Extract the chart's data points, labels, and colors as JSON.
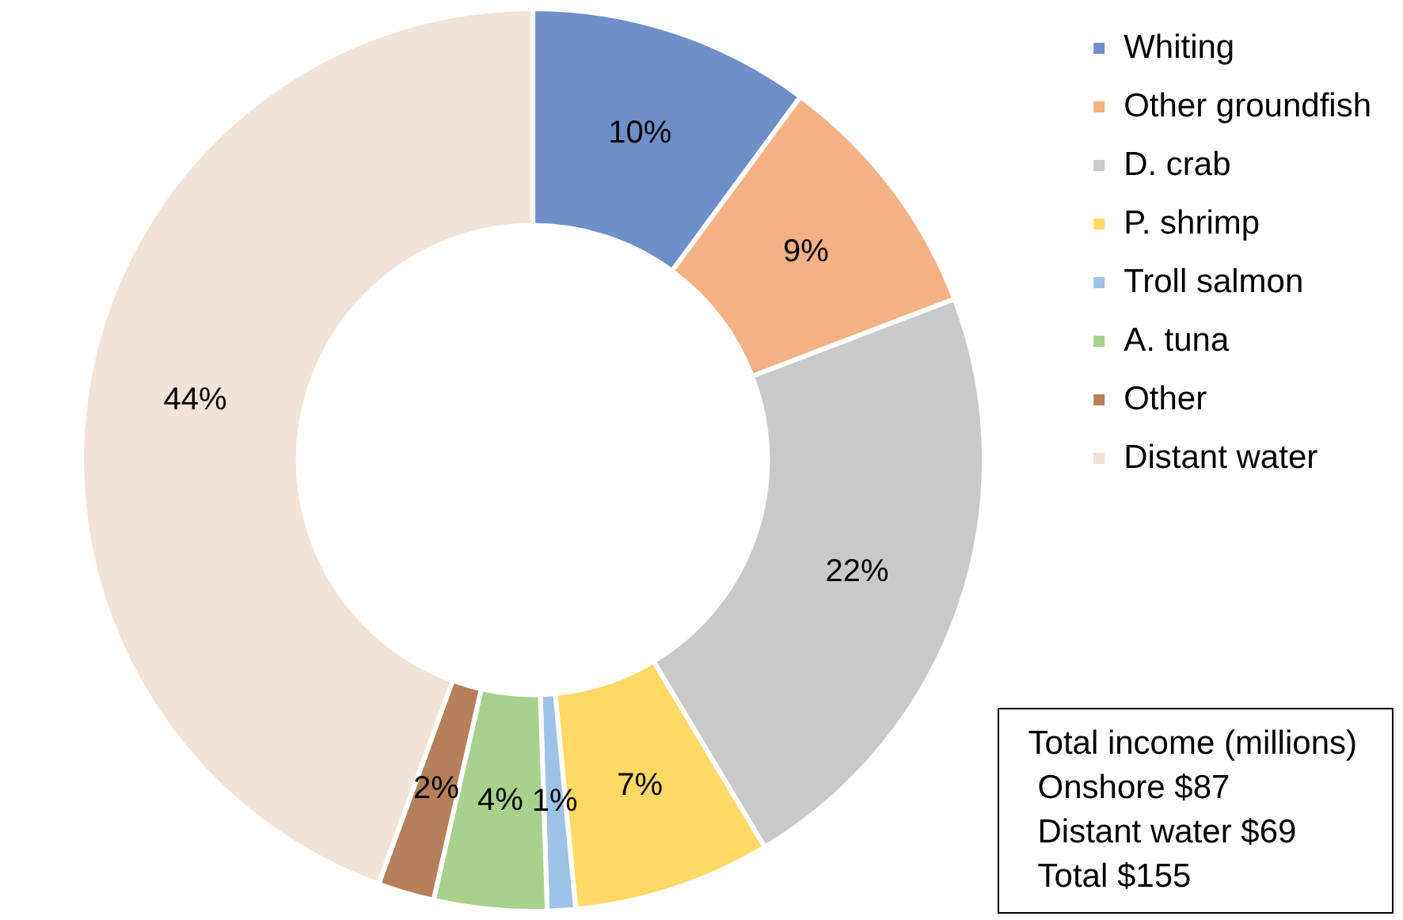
{
  "chart_data": {
    "type": "donut",
    "categories": [
      "Whiting",
      "Other groundfish",
      "D. crab",
      "P. shrimp",
      "Troll salmon",
      "A. tuna",
      "Other",
      "Distant water"
    ],
    "values": [
      10,
      9,
      22,
      7,
      1,
      4,
      2,
      44
    ],
    "colors": [
      "#6f8fc9",
      "#f4b183",
      "#c9c9c9",
      "#ffd966",
      "#9dc3e6",
      "#a9d18e",
      "#b5805a",
      "#f2e3d8"
    ],
    "value_labels": [
      "10%",
      "9%",
      "22%",
      "7%",
      "1%",
      "4%",
      "2%",
      "44%"
    ],
    "legend": "top right",
    "annotations": [
      "Total income (millions)",
      "Onshore $87",
      "Distant water $69",
      "Total $155"
    ]
  }
}
